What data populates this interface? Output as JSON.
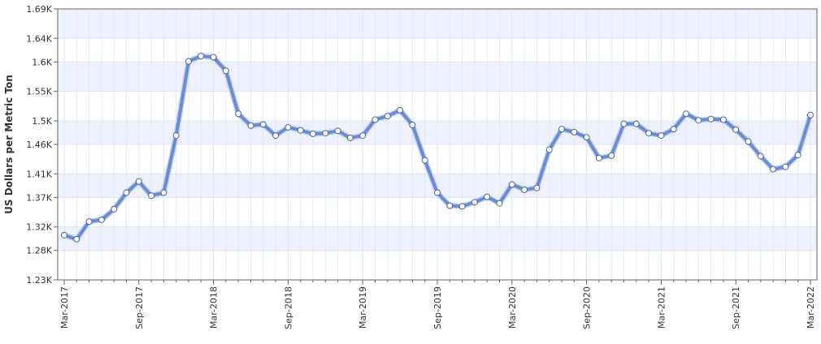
{
  "chart_data": {
    "type": "line",
    "title": "",
    "xlabel": "",
    "ylabel": "US Dollars per Metric Ton",
    "x_labeled_ticks": [
      "Mar-2017",
      "Sep-2017",
      "Mar-2018",
      "Sep-2018",
      "Mar-2019",
      "Sep-2019",
      "Mar-2020",
      "Sep-2020",
      "Mar-2021",
      "Sep-2021",
      "Mar-2022"
    ],
    "ylim": [
      1230,
      1690
    ],
    "y_ticks": [
      1230,
      1280,
      1320,
      1370,
      1410,
      1460,
      1500,
      1550,
      1600,
      1640,
      1690
    ],
    "y_tick_labels": [
      "1.23K",
      "1.28K",
      "1.32K",
      "1.37K",
      "1.41K",
      "1.46K",
      "1.5K",
      "1.55K",
      "1.6K",
      "1.64K",
      "1.69K"
    ],
    "grid": true,
    "x": [
      "Mar-2017",
      "Apr-2017",
      "May-2017",
      "Jun-2017",
      "Jul-2017",
      "Aug-2017",
      "Sep-2017",
      "Oct-2017",
      "Nov-2017",
      "Dec-2017",
      "Jan-2018",
      "Feb-2018",
      "Mar-2018",
      "Apr-2018",
      "May-2018",
      "Jun-2018",
      "Jul-2018",
      "Aug-2018",
      "Sep-2018",
      "Oct-2018",
      "Nov-2018",
      "Dec-2018",
      "Jan-2019",
      "Feb-2019",
      "Mar-2019",
      "Apr-2019",
      "May-2019",
      "Jun-2019",
      "Jul-2019",
      "Aug-2019",
      "Sep-2019",
      "Oct-2019",
      "Nov-2019",
      "Dec-2019",
      "Jan-2020",
      "Feb-2020",
      "Mar-2020",
      "Apr-2020",
      "May-2020",
      "Jun-2020",
      "Jul-2020",
      "Aug-2020",
      "Sep-2020",
      "Oct-2020",
      "Nov-2020",
      "Dec-2020",
      "Jan-2021",
      "Feb-2021",
      "Mar-2021",
      "Apr-2021",
      "May-2021",
      "Jun-2021",
      "Jul-2021",
      "Aug-2021",
      "Sep-2021",
      "Oct-2021",
      "Nov-2021",
      "Dec-2021",
      "Jan-2022",
      "Feb-2022",
      "Mar-2022"
    ],
    "series": [
      {
        "name": "",
        "values": [
          1306,
          1299,
          1329,
          1332,
          1350,
          1378,
          1397,
          1373,
          1378,
          1475,
          1601,
          1610,
          1608,
          1585,
          1512,
          1492,
          1494,
          1475,
          1489,
          1484,
          1478,
          1479,
          1483,
          1471,
          1475,
          1502,
          1508,
          1518,
          1493,
          1433,
          1378,
          1356,
          1355,
          1362,
          1371,
          1360,
          1392,
          1383,
          1386,
          1451,
          1486,
          1481,
          1472,
          1437,
          1441,
          1495,
          1495,
          1479,
          1475,
          1486,
          1512,
          1501,
          1503,
          1502,
          1485,
          1465,
          1440,
          1418,
          1422,
          1442,
          1510
        ]
      }
    ],
    "colors": {
      "line": "#6a8cd1",
      "marker_fill": "#ffffff",
      "marker_stroke": "#4a66a8",
      "band": "#eef1fb",
      "grid": "#dde6f5",
      "axis": "#666666"
    }
  }
}
